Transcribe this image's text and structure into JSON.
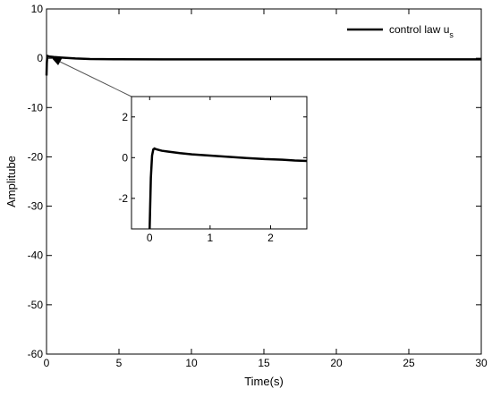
{
  "chart_data": {
    "type": "line",
    "xlabel": "Time(s)",
    "ylabel": "Amplitube",
    "xlim": [
      0,
      30
    ],
    "ylim": [
      -60,
      10
    ],
    "xticks": [
      "0",
      "5",
      "10",
      "15",
      "20",
      "25",
      "30"
    ],
    "yticks": [
      "10",
      "0",
      "-10",
      "-20",
      "-30",
      "-40",
      "-50",
      "-60"
    ],
    "grid": false,
    "legend_position": "top-right",
    "legend": {
      "label": "control law u",
      "subscript": "s"
    },
    "series": [
      {
        "name": "control law u_s",
        "x": [
          0,
          0.02,
          0.05,
          0.08,
          0.1,
          0.2,
          0.5,
          1,
          1.5,
          2,
          3,
          5,
          8,
          10,
          15,
          20,
          25,
          30
        ],
        "y": [
          -3.5,
          -1.0,
          0.3,
          0.45,
          0.42,
          0.35,
          0.25,
          0.15,
          0.05,
          -0.05,
          -0.15,
          -0.2,
          -0.22,
          -0.22,
          -0.22,
          -0.22,
          -0.22,
          -0.22
        ]
      }
    ],
    "inset": {
      "xlim": [
        -0.3,
        2.6
      ],
      "ylim": [
        -3.5,
        3
      ],
      "xticks": [
        "0",
        "1",
        "2"
      ],
      "yticks": [
        "2",
        "0",
        "-2"
      ],
      "series": [
        {
          "x": [
            0.0,
            0.02,
            0.04,
            0.06,
            0.08,
            0.1,
            0.15,
            0.2,
            0.3,
            0.5,
            0.7,
            1.0,
            1.3,
            1.6,
            1.9,
            2.2,
            2.4,
            2.6
          ],
          "y": [
            -3.5,
            -1.0,
            0.1,
            0.4,
            0.45,
            0.42,
            0.38,
            0.34,
            0.3,
            0.22,
            0.16,
            0.1,
            0.04,
            -0.02,
            -0.07,
            -0.1,
            -0.14,
            -0.16
          ]
        }
      ]
    }
  }
}
